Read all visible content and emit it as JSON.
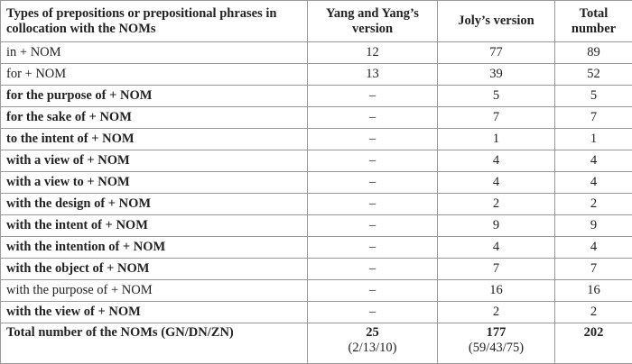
{
  "table": {
    "header": [
      "Types of prepositions or prepositional phrases in collocation with the NOMs",
      "Yang and Yang’s version",
      "Joly’s version",
      "Total number"
    ],
    "rows": [
      [
        "in + NOM",
        12,
        77,
        89
      ],
      [
        "for + NOM",
        13,
        39,
        52
      ],
      [
        "for the purpose of + NOM",
        "–",
        5,
        5
      ],
      [
        "for the sake of + NOM",
        "–",
        7,
        7
      ],
      [
        "to the intent of + NOM",
        "–",
        1,
        1
      ],
      [
        "with a view of + NOM",
        "–",
        4,
        4
      ],
      [
        "with a view to + NOM",
        "–",
        4,
        4
      ],
      [
        "with the design of + NOM",
        "–",
        2,
        2
      ],
      [
        "with the intent of + NOM",
        "–",
        9,
        9
      ],
      [
        "with the intention of + NOM",
        "–",
        4,
        4
      ],
      [
        "with the object of + NOM",
        "–",
        7,
        7
      ],
      [
        "with the purpose of + NOM",
        "–",
        16,
        16
      ],
      [
        "with the view of + NOM",
        "–",
        2,
        2
      ]
    ],
    "total": {
      "label": "Total number of the NOMs (GN/DN/ZN)",
      "yang": 25,
      "yang_detail": "(2/13/10)",
      "joly": 177,
      "joly_detail": "(59/43/75)",
      "all": 202
    }
  }
}
